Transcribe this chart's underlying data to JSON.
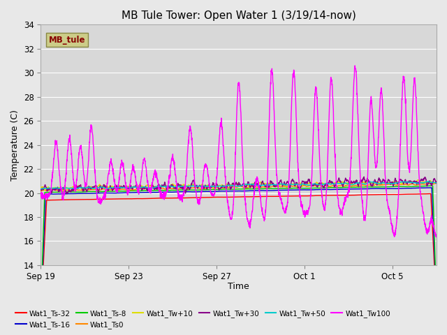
{
  "title": "MB Tule Tower: Open Water 1 (3/19/14-now)",
  "xlabel": "Time",
  "ylabel": "Temperature (C)",
  "ylim": [
    14,
    34
  ],
  "yticks": [
    14,
    16,
    18,
    20,
    22,
    24,
    26,
    28,
    30,
    32,
    34
  ],
  "background_color": "#e8e8e8",
  "plot_bg_color": "#d8d8d8",
  "grid_color": "#ffffff",
  "series": [
    {
      "label": "Wat1_Ts-32",
      "color": "#ff0000"
    },
    {
      "label": "Wat1_Ts-16",
      "color": "#0000cc"
    },
    {
      "label": "Wat1_Ts-8",
      "color": "#00cc00"
    },
    {
      "label": "Wat1_Ts0",
      "color": "#ff8800"
    },
    {
      "label": "Wat1_Tw+10",
      "color": "#dddd00"
    },
    {
      "label": "Wat1_Tw+30",
      "color": "#880088"
    },
    {
      "label": "Wat1_Tw+50",
      "color": "#00cccc"
    },
    {
      "label": "Wat1_Tw100",
      "color": "#ff00ff"
    }
  ],
  "legend_box_color": "#cccc88",
  "legend_box_text": "MB_tule",
  "legend_box_text_color": "#880000",
  "n_points": 2000
}
